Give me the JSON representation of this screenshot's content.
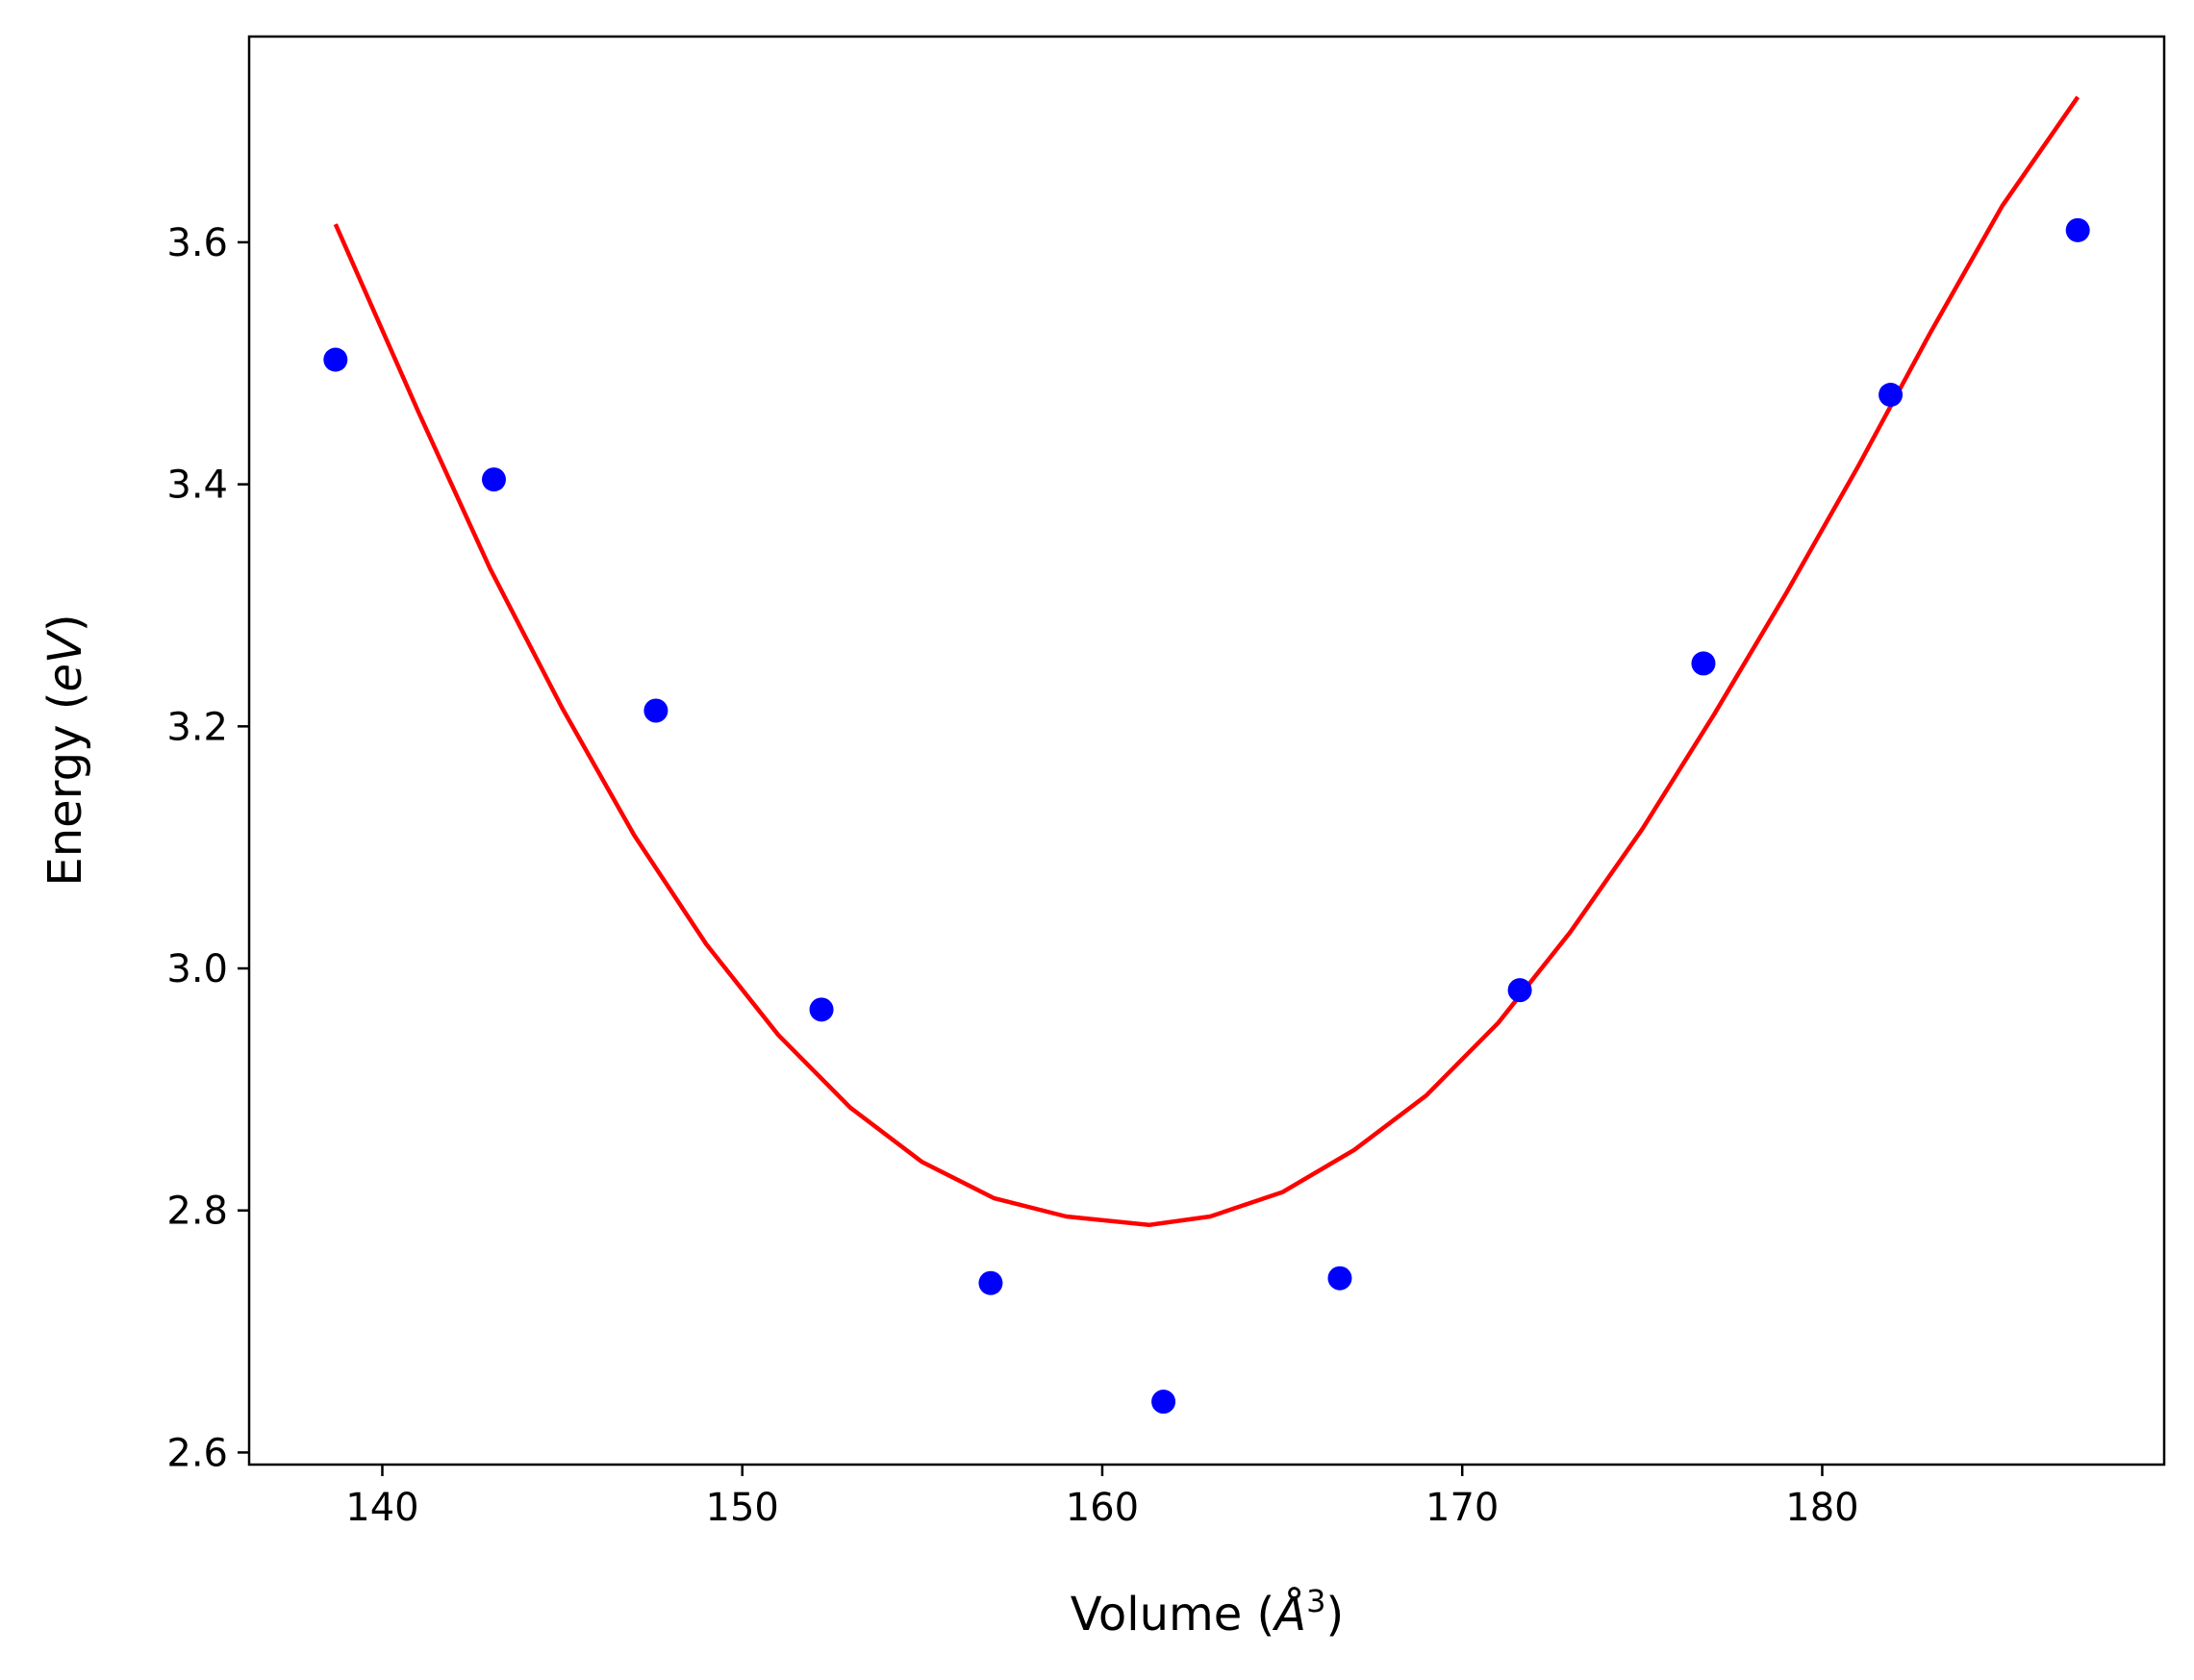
{
  "chart_data": {
    "type": "scatter",
    "xlabel": "Volume",
    "xlabel_unit_open": " (",
    "xlabel_unit_symbol": "Å",
    "xlabel_unit_power": "3",
    "xlabel_unit_close": ")",
    "ylabel": "Energy",
    "ylabel_unit_open": " (",
    "ylabel_unit_symbol": "eV",
    "ylabel_unit_close": ")",
    "xlim": [
      136.3,
      189.5
    ],
    "ylim": [
      2.59,
      3.77
    ],
    "xticks": [
      140,
      150,
      160,
      170,
      180
    ],
    "xtick_labels": [
      "140",
      "150",
      "160",
      "170",
      "180"
    ],
    "yticks": [
      2.6,
      2.8,
      3.0,
      3.2,
      3.4,
      3.6
    ],
    "ytick_labels": [
      "2.6",
      "2.8",
      "3.0",
      "3.2",
      "3.4",
      "3.6"
    ],
    "grid": false,
    "series": [
      {
        "kind": "points",
        "color": "#0000ff",
        "x": [
          138.7,
          143.1,
          147.6,
          152.2,
          156.9,
          161.7,
          166.6,
          171.6,
          176.7,
          181.9,
          187.1
        ],
        "y": [
          3.503,
          3.404,
          3.213,
          2.966,
          2.74,
          2.642,
          2.744,
          2.982,
          3.252,
          3.474,
          3.61
        ]
      },
      {
        "kind": "fit-curve",
        "color": "#ff0000",
        "x": [
          138.7,
          141.0,
          143.0,
          145.0,
          147.0,
          149.0,
          151.0,
          153.0,
          155.0,
          157.0,
          159.0,
          161.3,
          163.0,
          165.0,
          167.0,
          169.0,
          171.0,
          173.0,
          175.0,
          177.0,
          179.0,
          181.0,
          183.0,
          185.0,
          187.1
        ],
        "y": [
          3.615,
          3.46,
          3.33,
          3.215,
          3.11,
          3.02,
          2.945,
          2.885,
          2.84,
          2.81,
          2.795,
          2.788,
          2.795,
          2.815,
          2.85,
          2.895,
          2.955,
          3.03,
          3.115,
          3.21,
          3.31,
          3.415,
          3.525,
          3.63,
          3.72
        ]
      }
    ]
  }
}
